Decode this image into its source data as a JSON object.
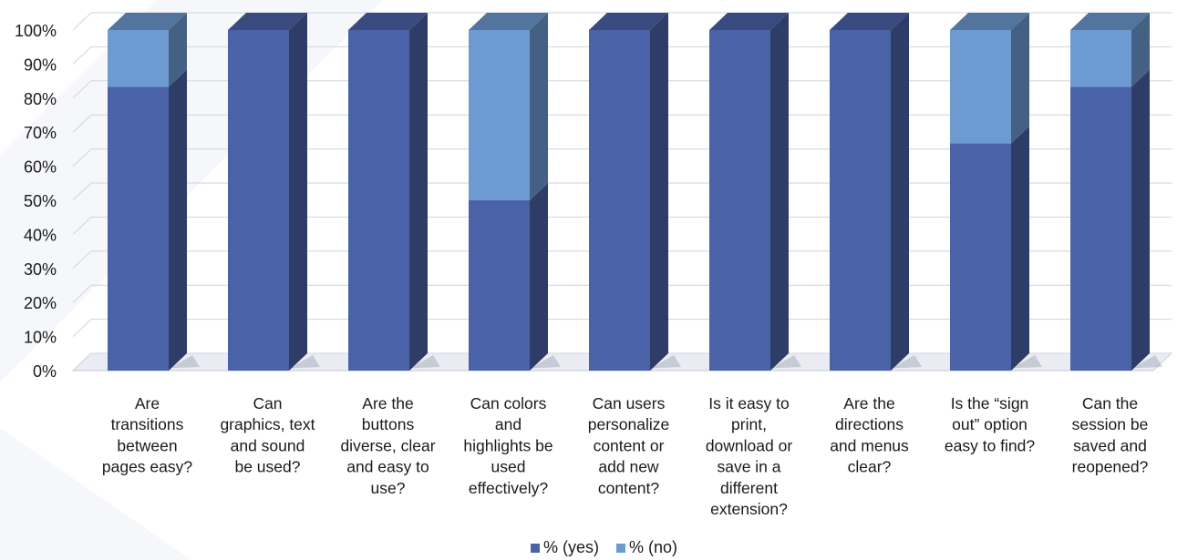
{
  "chart_data": {
    "type": "bar",
    "stacked": true,
    "percent_stacked": true,
    "style": "3d-columns",
    "categories": [
      "Are transitions between pages easy?",
      "Can graphics, text and sound be used?",
      "Are the buttons diverse, clear and easy to use?",
      "Can colors and highlights be used effectively?",
      "Can users personalize content or add new content?",
      "Is it easy to print, download or save in a different extension?",
      "Are the directions and menus clear?",
      "Is the “sign out” option easy to find?",
      "Can the session be saved and reopened?"
    ],
    "category_label_lines": [
      [
        "Are",
        "transitions",
        "between",
        "pages easy?"
      ],
      [
        "Can",
        "graphics, text",
        "and sound",
        "be used?"
      ],
      [
        "Are the",
        "buttons",
        "diverse, clear",
        "and easy to",
        "use?"
      ],
      [
        "Can colors",
        "and",
        "highlights be",
        "used",
        "effectively?"
      ],
      [
        "Can users",
        "personalize",
        "content or",
        "add new",
        "content?"
      ],
      [
        "Is it easy to",
        "print,",
        "download or",
        "save in a",
        "different",
        "extension?"
      ],
      [
        "Are the",
        "directions",
        "and menus",
        "clear?"
      ],
      [
        "Is the “sign",
        "out” option",
        "easy to find?"
      ],
      [
        "Can the",
        "session be",
        "saved and",
        "reopened?"
      ]
    ],
    "series": [
      {
        "name": "% (yes)",
        "values": [
          83.3,
          100,
          100,
          50,
          100,
          100,
          100,
          66.7,
          83.3
        ],
        "color": "#4a63a8"
      },
      {
        "name": "% (no)",
        "values": [
          16.7,
          0,
          0,
          50,
          0,
          0,
          0,
          33.3,
          16.7
        ],
        "color": "#6d9bd1"
      }
    ],
    "y_ticks": [
      "0%",
      "10%",
      "20%",
      "30%",
      "40%",
      "50%",
      "60%",
      "70%",
      "80%",
      "90%",
      "100%"
    ],
    "ylim": [
      0,
      100
    ],
    "grid": true,
    "legend_position": "bottom"
  }
}
